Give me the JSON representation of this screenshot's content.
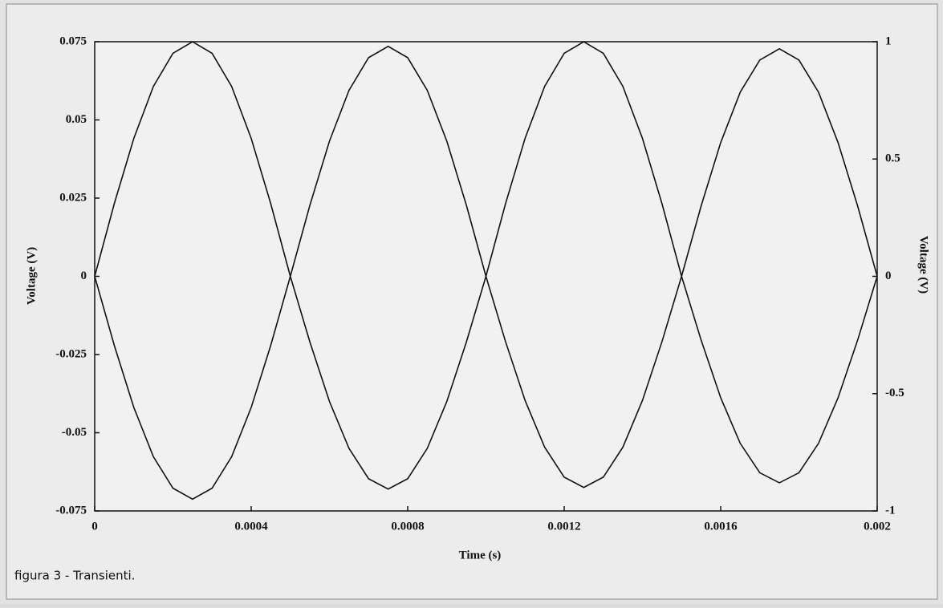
{
  "chart_data": {
    "type": "line",
    "caption": "figura 3 - Transienti.",
    "xlabel": "Time (s)",
    "ylabel": "Voltage (V)",
    "y2label": "Voltage (V)",
    "x": [
      0,
      5e-05,
      0.0001,
      0.00015,
      0.0002,
      0.00025,
      0.0003,
      0.00035,
      0.0004,
      0.00045,
      0.0005,
      0.00055,
      0.0006,
      0.00065,
      0.0007,
      0.00075,
      0.0008,
      0.00085,
      0.0009,
      0.00095,
      0.001,
      0.00105,
      0.0011,
      0.00115,
      0.0012,
      0.00125,
      0.0013,
      0.00135,
      0.0014,
      0.00145,
      0.0015,
      0.00155,
      0.0016,
      0.00165,
      0.0017,
      0.00175,
      0.0018,
      0.00185,
      0.0019,
      0.00195,
      0.002
    ],
    "series": [
      {
        "color": "#111111",
        "axis": "y",
        "values": [
          0,
          0.0232,
          0.0441,
          0.0607,
          0.0713,
          0.075,
          0.0713,
          0.0607,
          0.0441,
          0.0232,
          0,
          -0.021,
          -0.04,
          -0.055,
          -0.0647,
          -0.068,
          -0.0647,
          -0.055,
          -0.04,
          -0.021,
          0,
          0.0232,
          0.0441,
          0.0607,
          0.0713,
          0.075,
          0.0713,
          0.0607,
          0.0441,
          0.0232,
          0,
          -0.0204,
          -0.0388,
          -0.0534,
          -0.0628,
          -0.066,
          -0.0628,
          -0.0534,
          -0.0388,
          -0.0204,
          0
        ]
      },
      {
        "color": "#111111",
        "axis": "y2",
        "values": [
          0,
          -0.294,
          -0.559,
          -0.769,
          -0.903,
          -0.95,
          -0.903,
          -0.769,
          -0.559,
          -0.294,
          0,
          0.303,
          0.576,
          0.793,
          0.932,
          0.98,
          0.932,
          0.793,
          0.576,
          0.303,
          0,
          -0.278,
          -0.529,
          -0.728,
          -0.856,
          -0.9,
          -0.856,
          -0.728,
          -0.529,
          -0.278,
          0,
          0.3,
          0.57,
          0.785,
          0.922,
          0.97,
          0.922,
          0.785,
          0.57,
          0.3,
          0
        ]
      }
    ],
    "xlim": [
      0,
      0.002
    ],
    "xticks": [
      0,
      0.0004,
      0.0008,
      0.0012,
      0.0016,
      0.002
    ],
    "ylim": [
      -0.075,
      0.075
    ],
    "yticks": [
      0.075,
      0.05,
      0.025,
      0,
      -0.025,
      -0.05,
      -0.075
    ],
    "y2lim": [
      -1,
      1
    ],
    "y2ticks": [
      1,
      0.5,
      0,
      -0.5,
      -1
    ],
    "grid": false
  }
}
